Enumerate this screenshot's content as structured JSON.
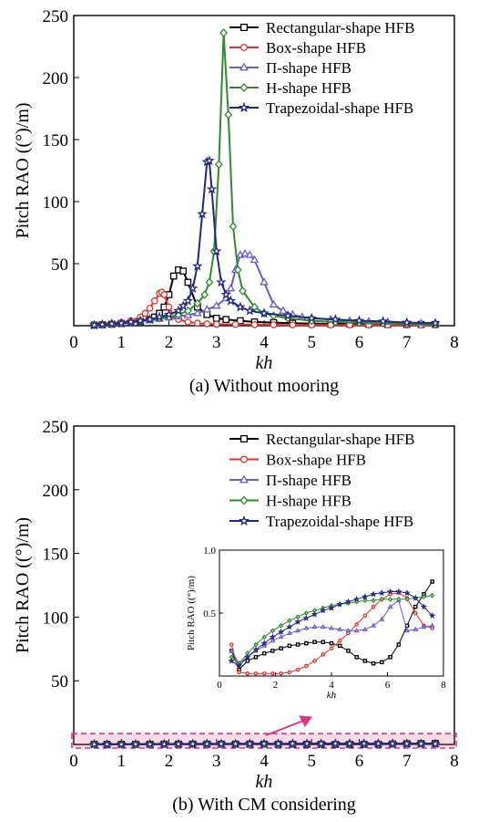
{
  "chart_data": [
    {
      "id": "top",
      "type": "line",
      "caption": "(a) Without mooring",
      "xlabel": "kh",
      "ylabel": "Pitch RAO ((°)/m)",
      "xlim": [
        0,
        8
      ],
      "ylim": [
        0,
        250
      ],
      "xticks": [
        "0",
        "1",
        "2",
        "3",
        "4",
        "5",
        "6",
        "7",
        "8"
      ],
      "yticks": [
        "50",
        "100",
        "150",
        "200",
        "250"
      ],
      "legend_position": "top-right",
      "series": [
        {
          "name": "Rectangular-shape HFB",
          "color": "#000000",
          "marker": "square",
          "x": [
            0.43,
            0.6,
            0.8,
            1.0,
            1.2,
            1.4,
            1.6,
            1.7,
            1.8,
            1.9,
            2.0,
            2.1,
            2.2,
            2.3,
            2.4,
            2.6,
            2.8,
            3.0,
            3.2,
            3.5,
            3.8,
            4.2,
            4.6,
            5.0,
            5.4,
            5.8,
            6.2,
            6.6,
            7.0,
            7.3,
            7.6
          ],
          "y": [
            0.5,
            0.8,
            1.2,
            1.8,
            2.5,
            3.5,
            5,
            7,
            10,
            15,
            25,
            40,
            45,
            44,
            35,
            15,
            9,
            6,
            5,
            4,
            3,
            2.5,
            2,
            1.8,
            1.5,
            1.3,
            1.2,
            1.1,
            1,
            1,
            1
          ]
        },
        {
          "name": "Box-shape HFB",
          "color": "#e8312a",
          "marker": "circle",
          "x": [
            0.43,
            0.6,
            0.8,
            1.0,
            1.2,
            1.4,
            1.5,
            1.6,
            1.7,
            1.8,
            1.85,
            1.9,
            2.0,
            2.1,
            2.2,
            2.4,
            2.6,
            2.8,
            3.0,
            3.4,
            3.8,
            4.2,
            4.6,
            5.0,
            5.4,
            5.8,
            6.2,
            6.6,
            7.0,
            7.3,
            7.6
          ],
          "y": [
            0.5,
            1,
            1.5,
            2.5,
            4,
            7,
            10,
            14,
            20,
            26,
            27,
            25,
            15,
            8,
            5,
            3,
            2,
            1.5,
            1.2,
            1,
            0.8,
            0.7,
            0.6,
            0.5,
            0.5,
            0.5,
            0.5,
            0.5,
            0.5,
            0.5,
            0.5
          ]
        },
        {
          "name": "Π-shape HFB",
          "color": "#6a5acd",
          "marker": "triangle",
          "x": [
            0.43,
            0.6,
            0.8,
            1.0,
            1.2,
            1.4,
            1.6,
            1.8,
            2.0,
            2.2,
            2.4,
            2.6,
            2.8,
            3.0,
            3.2,
            3.3,
            3.4,
            3.5,
            3.6,
            3.7,
            3.8,
            4.0,
            4.2,
            4.4,
            4.6,
            4.8,
            5.0,
            5.4,
            5.8,
            6.2,
            6.6,
            7.0,
            7.3,
            7.6
          ],
          "y": [
            0.5,
            0.8,
            1.2,
            1.8,
            2.5,
            3.5,
            4.5,
            5.5,
            6.5,
            7.5,
            8.5,
            10,
            13,
            16,
            22,
            30,
            45,
            57,
            58,
            57,
            53,
            35,
            17,
            12,
            9,
            7,
            6,
            5,
            4,
            3.5,
            3,
            2.5,
            2,
            2
          ]
        },
        {
          "name": "H-shape HFB",
          "color": "#2e8b2e",
          "marker": "diamond",
          "x": [
            0.43,
            0.6,
            0.8,
            1.0,
            1.2,
            1.4,
            1.6,
            1.8,
            2.0,
            2.2,
            2.4,
            2.6,
            2.75,
            2.85,
            2.95,
            3.05,
            3.15,
            3.25,
            3.35,
            3.45,
            3.55,
            3.8,
            4.0,
            4.2,
            4.5,
            5.0,
            5.5,
            6.0,
            6.5,
            7.0,
            7.6
          ],
          "y": [
            0.5,
            0.8,
            1.2,
            2,
            3,
            4,
            5,
            6,
            7,
            9,
            12,
            18,
            25,
            35,
            60,
            130,
            236,
            170,
            80,
            45,
            28,
            15,
            10,
            8,
            6,
            4,
            3,
            2.5,
            2,
            1.5,
            1
          ]
        },
        {
          "name": "Trapezoidal-shape HFB",
          "color": "#23297a",
          "marker": "star",
          "x": [
            0.43,
            0.6,
            0.8,
            1.0,
            1.2,
            1.4,
            1.6,
            1.8,
            2.0,
            2.2,
            2.3,
            2.4,
            2.5,
            2.6,
            2.7,
            2.8,
            2.85,
            2.9,
            3.0,
            3.1,
            3.2,
            3.3,
            3.5,
            3.7,
            4.0,
            4.5,
            5.0,
            5.5,
            6.0,
            6.5,
            7.0,
            7.6
          ],
          "y": [
            0.5,
            1,
            1.5,
            2,
            3,
            4,
            5,
            7,
            9,
            12,
            16,
            20,
            30,
            48,
            90,
            132,
            133,
            110,
            60,
            35,
            25,
            20,
            15,
            12,
            10,
            8,
            6,
            5,
            4,
            3.5,
            2.5,
            2
          ]
        }
      ]
    },
    {
      "id": "bottom",
      "type": "line",
      "caption": "(b) With CM considering",
      "xlabel": "kh",
      "ylabel": "Pitch RAO ((°)/m)",
      "xlim": [
        0,
        8
      ],
      "ylim": [
        0,
        250
      ],
      "xticks": [
        "0",
        "1",
        "2",
        "3",
        "4",
        "5",
        "6",
        "7",
        "8"
      ],
      "yticks": [
        "50",
        "100",
        "150",
        "200",
        "250"
      ],
      "legend_position": "top-right",
      "highlight_band": {
        "color": "#e0357f",
        "ymax": 5
      },
      "series": [
        {
          "name": "Rectangular-shape HFB",
          "color": "#000000",
          "marker": "square",
          "x": [
            0.43,
            0.7,
            1.0,
            1.3,
            1.6,
            1.9,
            2.2,
            2.5,
            2.8,
            3.1,
            3.4,
            3.7,
            4.0,
            4.3,
            4.6,
            4.9,
            5.2,
            5.5,
            5.8,
            6.1,
            6.4,
            6.7,
            7.0,
            7.3,
            7.6
          ],
          "y": [
            0.2,
            0.05,
            0.12,
            0.15,
            0.18,
            0.2,
            0.22,
            0.24,
            0.25,
            0.26,
            0.27,
            0.27,
            0.26,
            0.24,
            0.2,
            0.15,
            0.12,
            0.1,
            0.11,
            0.15,
            0.25,
            0.4,
            0.55,
            0.65,
            0.75
          ]
        },
        {
          "name": "Box-shape HFB",
          "color": "#e8312a",
          "marker": "circle",
          "x": [
            0.43,
            0.7,
            1.0,
            1.3,
            1.6,
            1.9,
            2.2,
            2.5,
            2.8,
            3.1,
            3.4,
            3.7,
            4.0,
            4.3,
            4.6,
            4.9,
            5.2,
            5.5,
            5.8,
            6.1,
            6.4,
            6.7,
            7.0,
            7.3,
            7.6
          ],
          "y": [
            0.25,
            0.03,
            0.02,
            0.02,
            0.02,
            0.02,
            0.02,
            0.03,
            0.05,
            0.08,
            0.12,
            0.17,
            0.22,
            0.28,
            0.34,
            0.41,
            0.48,
            0.55,
            0.61,
            0.65,
            0.66,
            0.62,
            0.5,
            0.4,
            0.38
          ]
        },
        {
          "name": "Π-shape HFB",
          "color": "#6a5acd",
          "marker": "triangle",
          "x": [
            0.43,
            0.7,
            1.0,
            1.3,
            1.6,
            1.9,
            2.2,
            2.5,
            2.8,
            3.1,
            3.4,
            3.7,
            4.0,
            4.3,
            4.6,
            4.9,
            5.2,
            5.5,
            5.8,
            6.1,
            6.4,
            6.7,
            7.0,
            7.3,
            7.6
          ],
          "y": [
            0.2,
            0.1,
            0.15,
            0.2,
            0.24,
            0.28,
            0.31,
            0.34,
            0.36,
            0.38,
            0.39,
            0.39,
            0.38,
            0.37,
            0.36,
            0.36,
            0.37,
            0.4,
            0.45,
            0.55,
            0.6,
            0.36,
            0.37,
            0.39,
            0.4
          ]
        },
        {
          "name": "H-shape HFB",
          "color": "#2e8b2e",
          "marker": "diamond",
          "x": [
            0.43,
            0.7,
            1.0,
            1.3,
            1.6,
            1.9,
            2.2,
            2.5,
            2.8,
            3.1,
            3.4,
            3.7,
            4.0,
            4.3,
            4.6,
            4.9,
            5.2,
            5.5,
            5.8,
            6.1,
            6.4,
            6.7,
            7.0,
            7.3,
            7.6
          ],
          "y": [
            0.15,
            0.1,
            0.18,
            0.25,
            0.31,
            0.36,
            0.4,
            0.44,
            0.47,
            0.5,
            0.52,
            0.54,
            0.56,
            0.57,
            0.58,
            0.59,
            0.6,
            0.6,
            0.61,
            0.61,
            0.61,
            0.61,
            0.62,
            0.63,
            0.64
          ]
        },
        {
          "name": "Trapezoidal-shape HFB",
          "color": "#23297a",
          "marker": "star",
          "x": [
            0.43,
            0.7,
            1.0,
            1.3,
            1.6,
            1.9,
            2.2,
            2.5,
            2.8,
            3.1,
            3.4,
            3.7,
            4.0,
            4.3,
            4.6,
            4.9,
            5.2,
            5.5,
            5.8,
            6.1,
            6.4,
            6.7,
            7.0,
            7.3,
            7.6
          ],
          "y": [
            0.12,
            0.08,
            0.15,
            0.21,
            0.26,
            0.31,
            0.35,
            0.39,
            0.43,
            0.46,
            0.49,
            0.52,
            0.54,
            0.57,
            0.59,
            0.61,
            0.63,
            0.65,
            0.66,
            0.67,
            0.67,
            0.66,
            0.62,
            0.55,
            0.48
          ]
        }
      ]
    },
    {
      "id": "inset",
      "type": "line",
      "xlabel": "kh",
      "ylabel": "Pitch RAO ((°)/m)",
      "xlim": [
        0,
        8
      ],
      "ylim": [
        0,
        1.0
      ],
      "xticks": [
        "0",
        "2",
        "4",
        "6",
        "8"
      ],
      "yticks": [
        "0.5",
        "1.0"
      ],
      "series_ref": "bottom"
    }
  ]
}
